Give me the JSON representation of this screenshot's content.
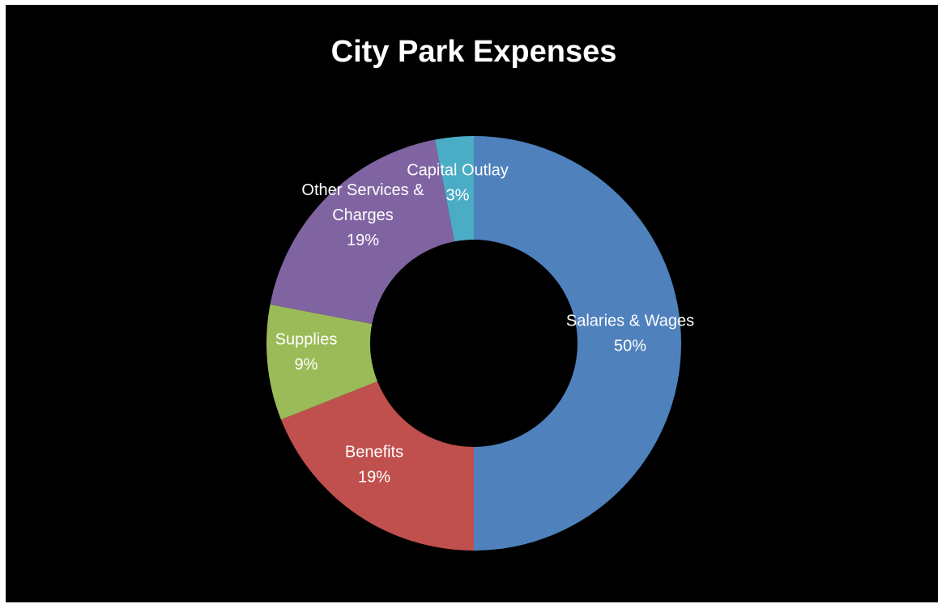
{
  "chart_data": {
    "type": "pie",
    "variant": "doughnut",
    "title": "City Park Expenses",
    "categories": [
      "Salaries & Wages",
      "Benefits",
      "Supplies",
      "Other Services & Charges",
      "Capital Outlay"
    ],
    "values": [
      50,
      19,
      9,
      19,
      3
    ],
    "unit": "%",
    "data_labels": [
      "50%",
      "19%",
      "9%",
      "19%",
      "3%"
    ],
    "colors": [
      "#4f81bd",
      "#c0504d",
      "#9bbb59",
      "#8064a2",
      "#4bacc6"
    ],
    "background": "#000000",
    "start": "top",
    "direction": "clockwise",
    "legend": "none",
    "slice_label_lines": [
      [
        "Salaries & Wages",
        "50%"
      ],
      [
        "Benefits",
        "19%"
      ],
      [
        "Supplies",
        "9%"
      ],
      [
        "Other Services &",
        "Charges",
        "19%"
      ],
      [
        "Capital Outlay",
        "3%"
      ]
    ]
  }
}
